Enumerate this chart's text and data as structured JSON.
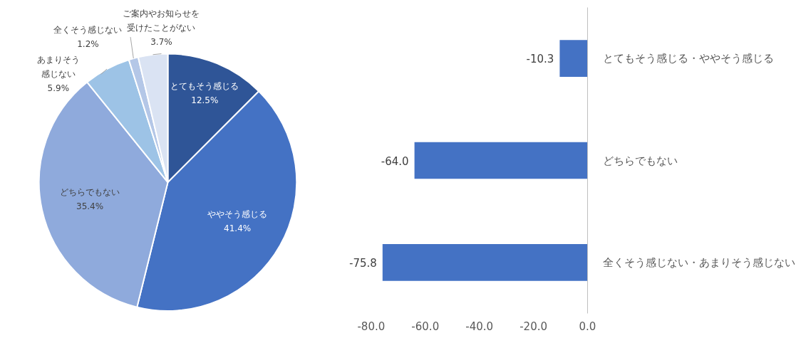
{
  "chart_data": [
    {
      "type": "pie",
      "categories": [
        "とてもそう感じる",
        "ややそう感じる",
        "どちらでもない",
        "あまりそう感じない",
        "全くそう感じない",
        "ご案内やお知らせを受けたことがない"
      ],
      "values": [
        12.5,
        41.4,
        35.4,
        5.9,
        1.2,
        3.7
      ],
      "colors": [
        "#2f5597",
        "#4472c4",
        "#8faadc",
        "#9dc3e6",
        "#b4c7e7",
        "#dae3f3"
      ],
      "value_labels": [
        "12.5%",
        "41.4%",
        "35.4%",
        "5.9%",
        "1.2%",
        "3.7%"
      ],
      "legend": false
    },
    {
      "type": "bar",
      "orientation": "horizontal",
      "categories": [
        "とてもそう感じる・ややそう感じる",
        "どちらでもない",
        "全くそう感じない・あまりそう感じない"
      ],
      "values": [
        -10.3,
        -64.0,
        -75.8
      ],
      "color": "#4472c4",
      "value_labels": [
        "-10.3",
        "-64.0",
        "-75.8"
      ],
      "xlim": [
        -80,
        0
      ],
      "xticks": [
        {
          "value": -80,
          "label": "-80.0"
        },
        {
          "value": -60,
          "label": "-60.0"
        },
        {
          "value": -40,
          "label": "-40.0"
        },
        {
          "value": -20,
          "label": "-20.0"
        },
        {
          "value": 0,
          "label": "0.0"
        }
      ],
      "grid": false,
      "legend": false
    }
  ]
}
